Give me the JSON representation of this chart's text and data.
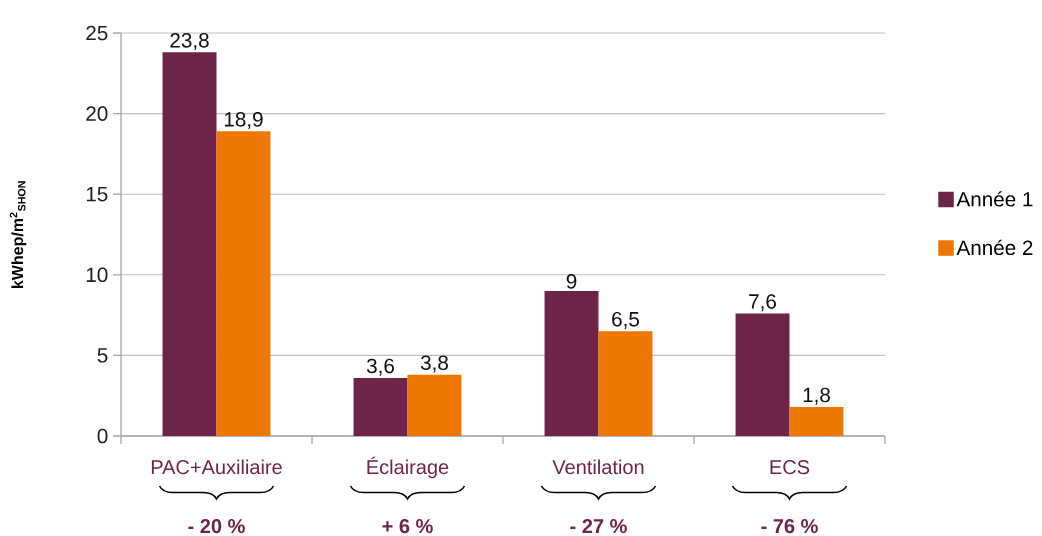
{
  "chart_data": {
    "type": "bar",
    "ylabel": "kWhep/m$^{2}$$_{SHON}$",
    "categories": [
      "PAC+Auxiliaire",
      "Éclairage",
      "Ventilation",
      "ECS"
    ],
    "series": [
      {
        "name": "Année 1",
        "color": "#6e2449",
        "values": [
          23.8,
          3.6,
          9,
          7.6
        ],
        "value_labels": [
          "23,8",
          "3,6",
          "9",
          "7,6"
        ]
      },
      {
        "name": "Année 2",
        "color": "#ed7703",
        "values": [
          18.9,
          3.8,
          6.5,
          1.8
        ],
        "value_labels": [
          "18,9",
          "3,8",
          "6,5",
          "1,8"
        ]
      }
    ],
    "ylim": [
      0,
      25
    ],
    "yticks": [
      0,
      5,
      10,
      15,
      20,
      25
    ],
    "grid": "y",
    "legend": "right",
    "annotations": [
      "- 20 %",
      "+ 6 %",
      "- 27 %",
      "- 76 %"
    ]
  }
}
